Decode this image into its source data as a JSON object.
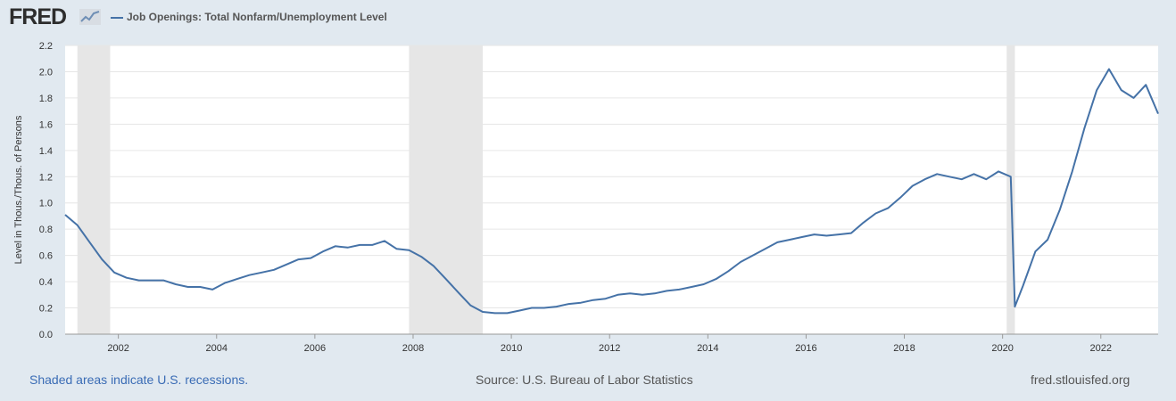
{
  "header": {
    "logo_text": "FRED",
    "legend_label": "Job Openings: Total Nonfarm/Unemployment Level"
  },
  "colors": {
    "series_line": "#4572a7",
    "recession_band": "#e6e6e6",
    "background": "#e1e9f0",
    "plot_background": "#ffffff",
    "grid": "#e6e6e6"
  },
  "icons": {
    "logo_icon": "chart-line-icon"
  },
  "chart_data": {
    "type": "line",
    "title": "",
    "xlabel": "",
    "ylabel": "Level in Thous./Thous. of Persons",
    "ylim": [
      0.0,
      2.2
    ],
    "xlim": [
      "2000-12",
      "2023-03"
    ],
    "y_ticks": [
      "0.0",
      "0.2",
      "0.4",
      "0.6",
      "0.8",
      "1.0",
      "1.2",
      "1.4",
      "1.6",
      "1.8",
      "2.0",
      "2.2"
    ],
    "x_ticks": [
      "2002",
      "2004",
      "2006",
      "2008",
      "2010",
      "2012",
      "2014",
      "2016",
      "2018",
      "2020",
      "2022"
    ],
    "grid": true,
    "legend": "top-left",
    "recessions": [
      {
        "start": "2001-03",
        "end": "2001-11"
      },
      {
        "start": "2007-12",
        "end": "2009-06"
      },
      {
        "start": "2020-02",
        "end": "2020-04"
      }
    ],
    "series": [
      {
        "name": "Job Openings: Total Nonfarm/Unemployment Level",
        "x": [
          "2000-12",
          "2001-03",
          "2001-06",
          "2001-09",
          "2001-12",
          "2002-03",
          "2002-06",
          "2002-09",
          "2002-12",
          "2003-03",
          "2003-06",
          "2003-09",
          "2003-12",
          "2004-03",
          "2004-06",
          "2004-09",
          "2004-12",
          "2005-03",
          "2005-06",
          "2005-09",
          "2005-12",
          "2006-03",
          "2006-06",
          "2006-09",
          "2006-12",
          "2007-03",
          "2007-06",
          "2007-09",
          "2007-12",
          "2008-03",
          "2008-06",
          "2008-09",
          "2008-12",
          "2009-03",
          "2009-06",
          "2009-09",
          "2009-12",
          "2010-03",
          "2010-06",
          "2010-09",
          "2010-12",
          "2011-03",
          "2011-06",
          "2011-09",
          "2011-12",
          "2012-03",
          "2012-06",
          "2012-09",
          "2012-12",
          "2013-03",
          "2013-06",
          "2013-09",
          "2013-12",
          "2014-03",
          "2014-06",
          "2014-09",
          "2014-12",
          "2015-03",
          "2015-06",
          "2015-09",
          "2015-12",
          "2016-03",
          "2016-06",
          "2016-09",
          "2016-12",
          "2017-03",
          "2017-06",
          "2017-09",
          "2017-12",
          "2018-03",
          "2018-06",
          "2018-09",
          "2018-12",
          "2019-03",
          "2019-06",
          "2019-09",
          "2019-12",
          "2020-03",
          "2020-04",
          "2020-06",
          "2020-09",
          "2020-12",
          "2021-03",
          "2021-06",
          "2021-09",
          "2021-12",
          "2022-03",
          "2022-06",
          "2022-09",
          "2022-12",
          "2023-03"
        ],
        "values": [
          0.91,
          0.83,
          0.7,
          0.57,
          0.47,
          0.43,
          0.41,
          0.41,
          0.41,
          0.38,
          0.36,
          0.36,
          0.34,
          0.39,
          0.42,
          0.45,
          0.47,
          0.49,
          0.53,
          0.57,
          0.58,
          0.63,
          0.67,
          0.66,
          0.68,
          0.68,
          0.71,
          0.65,
          0.64,
          0.59,
          0.52,
          0.42,
          0.32,
          0.22,
          0.17,
          0.16,
          0.16,
          0.18,
          0.2,
          0.2,
          0.21,
          0.23,
          0.24,
          0.26,
          0.27,
          0.3,
          0.31,
          0.3,
          0.31,
          0.33,
          0.34,
          0.36,
          0.38,
          0.42,
          0.48,
          0.55,
          0.6,
          0.65,
          0.7,
          0.72,
          0.74,
          0.76,
          0.75,
          0.76,
          0.77,
          0.85,
          0.92,
          0.96,
          1.04,
          1.13,
          1.18,
          1.22,
          1.2,
          1.18,
          1.22,
          1.18,
          1.24,
          1.2,
          0.21,
          0.37,
          0.63,
          0.72,
          0.95,
          1.24,
          1.57,
          1.86,
          2.02,
          1.86,
          1.8,
          1.9,
          1.68
        ]
      }
    ]
  },
  "footer": {
    "recession_note": "Shaded areas indicate U.S. recessions.",
    "source": "Source: U.S. Bureau of Labor Statistics",
    "site": "fred.stlouisfed.org"
  }
}
